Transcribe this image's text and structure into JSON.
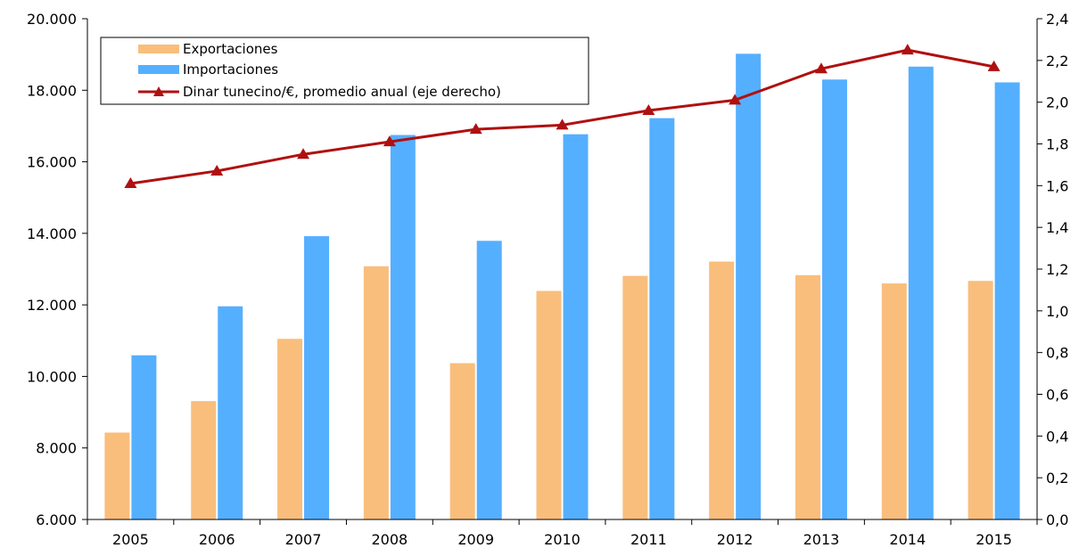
{
  "chart_data": {
    "type": "bar",
    "categories": [
      "2005",
      "2006",
      "2007",
      "2008",
      "2009",
      "2010",
      "2011",
      "2012",
      "2013",
      "2014",
      "2015"
    ],
    "series": [
      {
        "name": "Exportaciones",
        "type": "bar",
        "axis": "left",
        "color": "#F9BE7C",
        "values": [
          8430,
          9310,
          11050,
          13080,
          10370,
          12390,
          12810,
          13210,
          12830,
          12600,
          12670
        ]
      },
      {
        "name": "Importaciones",
        "type": "bar",
        "axis": "left",
        "color": "#55AFFF",
        "values": [
          10590,
          11960,
          13920,
          16750,
          13790,
          16770,
          17220,
          19020,
          18300,
          18660,
          18220
        ]
      },
      {
        "name": "Dinar tunecino/€, promedio anual (eje derecho)",
        "type": "line",
        "axis": "right",
        "color": "#B01010",
        "values": [
          1.61,
          1.67,
          1.75,
          1.81,
          1.87,
          1.89,
          1.96,
          2.01,
          2.16,
          2.25,
          2.17
        ]
      }
    ],
    "left_axis": {
      "ylim": [
        6000,
        20000
      ],
      "ticks": [
        "6.000",
        "8.000",
        "10.000",
        "12.000",
        "14.000",
        "16.000",
        "18.000",
        "20.000"
      ]
    },
    "right_axis": {
      "ylim": [
        0,
        2.4
      ],
      "ticks": [
        "0,0",
        "0,2",
        "0,4",
        "0,6",
        "0,8",
        "1,0",
        "1,2",
        "1,4",
        "1,6",
        "1,8",
        "2,0",
        "2,2",
        "2,4"
      ]
    },
    "legend_position": "top-left",
    "grid": false,
    "title": "",
    "xlabel": "",
    "ylabel": ""
  }
}
